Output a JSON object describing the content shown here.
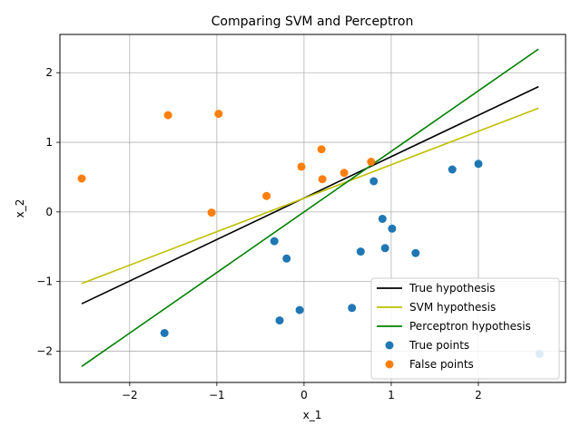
{
  "chart_data": {
    "type": "scatter",
    "title": "Comparing SVM and Perceptron",
    "xlabel": "x_1",
    "ylabel": "x_2",
    "xlim": [
      -2.8,
      3.0
    ],
    "ylim": [
      -2.45,
      2.55
    ],
    "xticks": [
      -2,
      -1,
      0,
      1,
      2
    ],
    "yticks": [
      -2,
      -1,
      0,
      1,
      2
    ],
    "grid": true,
    "legend_position": "lower-right",
    "lines": [
      {
        "name": "True hypothesis",
        "color": "#000000",
        "x": [
          -2.55,
          2.69
        ],
        "y": [
          -1.32,
          1.8
        ]
      },
      {
        "name": "SVM hypothesis",
        "color": "#bfbf00",
        "x": [
          -2.55,
          2.69
        ],
        "y": [
          -1.03,
          1.49
        ]
      },
      {
        "name": "Perceptron hypothesis",
        "color": "#008000",
        "x": [
          -2.55,
          2.69
        ],
        "y": [
          -2.22,
          2.34
        ]
      }
    ],
    "points": [
      {
        "name": "True points",
        "color": "#1f77b4",
        "x": [
          2.0,
          1.7,
          0.8,
          0.9,
          1.01,
          0.93,
          0.65,
          1.28,
          -0.34,
          -0.2,
          0.55,
          -0.28,
          -0.05,
          -1.6,
          2.7
        ],
        "y": [
          0.69,
          0.61,
          0.44,
          -0.1,
          -0.24,
          -0.52,
          -0.57,
          -0.59,
          -0.42,
          -0.67,
          -1.38,
          -1.56,
          -1.41,
          -1.74,
          -2.04
        ]
      },
      {
        "name": "False points",
        "color": "#ff7f0e",
        "x": [
          -2.55,
          -1.56,
          -0.98,
          -1.06,
          -0.43,
          -0.03,
          0.2,
          0.21,
          0.46,
          0.77
        ],
        "y": [
          0.48,
          1.39,
          1.41,
          -0.01,
          0.23,
          0.65,
          0.9,
          0.47,
          0.56,
          0.72
        ]
      }
    ]
  }
}
